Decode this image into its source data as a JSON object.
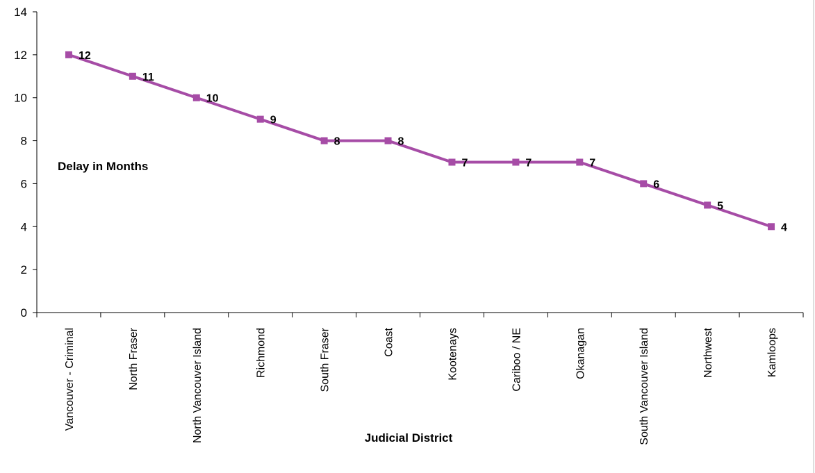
{
  "chart_data": {
    "type": "line",
    "categories": [
      "Vancouver - Criminal",
      "North Fraser",
      "North Vancouver Island",
      "Richmond",
      "South Fraser",
      "Coast",
      "Kootenays",
      "Cariboo / NE",
      "Okanagan",
      "South Vancouver Island",
      "Northwest",
      "Kamloops"
    ],
    "series": [
      {
        "values": [
          12,
          11,
          10,
          9,
          8,
          8,
          7,
          7,
          7,
          6,
          5,
          4
        ]
      }
    ],
    "data_labels": [
      "12",
      "11",
      "10",
      "9",
      "8",
      "8",
      "7",
      "7",
      "7",
      "6",
      "5",
      "4"
    ],
    "xlabel": "Judicial District",
    "ylabel": "Delay in Months",
    "ylim": [
      0,
      14
    ],
    "yticks": [
      0,
      2,
      4,
      6,
      8,
      10,
      12,
      14
    ],
    "grid": false,
    "legend": "none",
    "series_color": "#A64CA6",
    "marker": "square"
  }
}
